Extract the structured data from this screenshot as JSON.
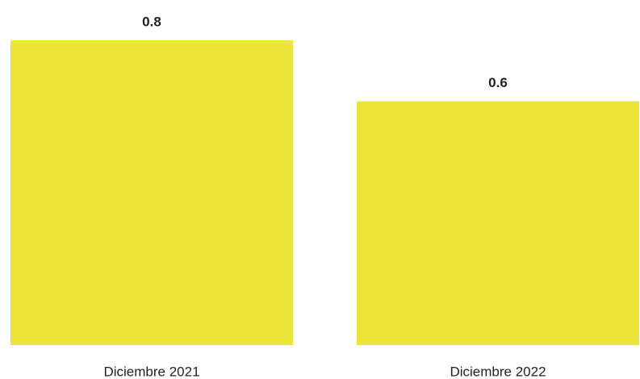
{
  "chart_data": {
    "type": "bar",
    "categories": [
      "Diciembre 2021",
      "Diciembre 2022"
    ],
    "values": [
      0.8,
      0.64
    ],
    "value_labels": [
      "0.8",
      "0.6"
    ],
    "color": "#ebe53a"
  }
}
